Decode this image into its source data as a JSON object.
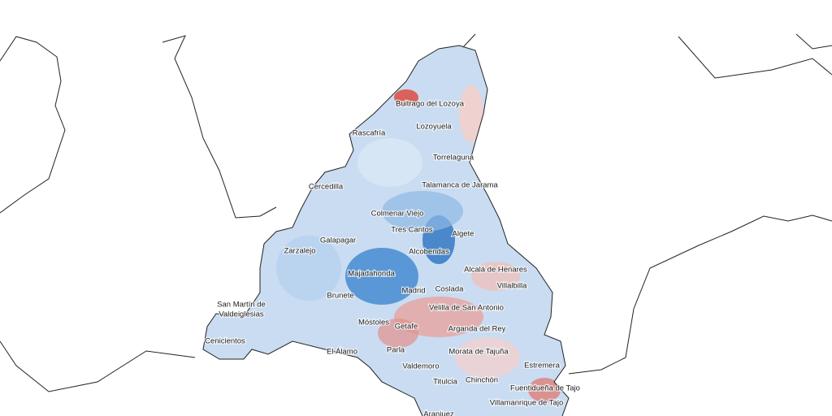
{
  "labels": [
    "Buitrago del Lozoya",
    "Lozoyuela",
    "Rascafría",
    "Torrelaguna",
    "Cercedilla",
    "Talamanca de Jarama",
    "Colmenar Viejo",
    "Tres Cantos",
    "Algete",
    "Galapagar",
    "Zarzalejo",
    "Alcobendas",
    "Alcalá de Henares",
    "Majadahonda",
    "Villalbilla",
    "Madrid",
    "Coslada",
    "Brunete",
    "San Martín de",
    "Valdeiglesias",
    "Velilla de San Antonio",
    "Móstoles",
    "Getafe",
    "Arganda del Rey",
    "Cenicientos",
    "El Álamo",
    "Parla",
    "Morata de Tajuña",
    "Estremera",
    "Valdemoro",
    "Titulcia",
    "Chinchón",
    "Fuentidueña de Tajo",
    "Villamanrique de Tajo",
    "Aranjuez"
  ]
}
